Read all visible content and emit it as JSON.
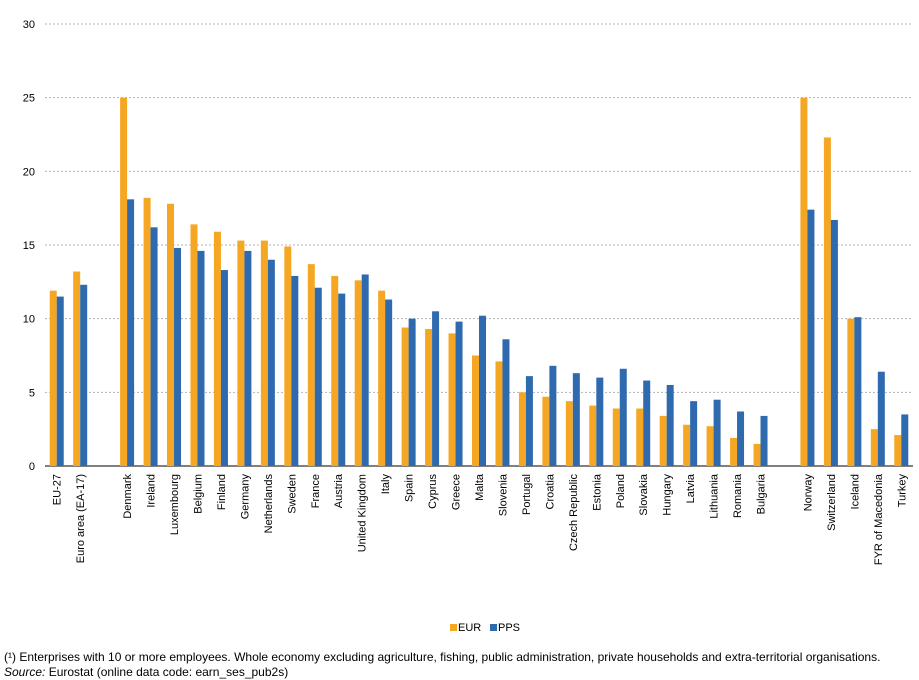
{
  "chart_data": {
    "type": "bar",
    "ylim": [
      0,
      30
    ],
    "yticks": [
      0,
      5,
      10,
      15,
      20,
      25,
      30
    ],
    "grid": true,
    "legend_position": "bottom-center",
    "groups": [
      [
        "EU-27",
        "Euro area (EA-17)"
      ],
      [
        "Denmark",
        "Ireland",
        "Luxembourg",
        "Belgium",
        "Finland",
        "Germany",
        "Netherlands",
        "Sweden",
        "France",
        "Austria",
        "United Kingdom",
        "Italy",
        "Spain",
        "Cyprus",
        "Greece",
        "Malta",
        "Slovenia",
        "Portugal",
        "Croatia",
        "Czech Republic",
        "Estonia",
        "Poland",
        "Slovakia",
        "Hungary",
        "Latvia",
        "Lithuania",
        "Romania",
        "Bulgaria"
      ],
      [
        "Norway",
        "Switzerland",
        "Iceland",
        "FYR of Macedonia",
        "Turkey"
      ]
    ],
    "categories": [
      "EU-27",
      "Euro area (EA-17)",
      "Denmark",
      "Ireland",
      "Luxembourg",
      "Belgium",
      "Finland",
      "Germany",
      "Netherlands",
      "Sweden",
      "France",
      "Austria",
      "United Kingdom",
      "Italy",
      "Spain",
      "Cyprus",
      "Greece",
      "Malta",
      "Slovenia",
      "Portugal",
      "Croatia",
      "Czech Republic",
      "Estonia",
      "Poland",
      "Slovakia",
      "Hungary",
      "Latvia",
      "Lithuania",
      "Romania",
      "Bulgaria",
      "Norway",
      "Switzerland",
      "Iceland",
      "FYR of Macedonia",
      "Turkey"
    ],
    "series": [
      {
        "name": "EUR",
        "color": "#f5a623",
        "values": [
          11.9,
          13.2,
          25.0,
          18.2,
          17.8,
          16.4,
          15.9,
          15.3,
          15.3,
          14.9,
          13.7,
          12.9,
          12.6,
          11.9,
          9.4,
          9.3,
          9.0,
          7.5,
          7.1,
          5.0,
          4.7,
          4.4,
          4.1,
          3.9,
          3.9,
          3.4,
          2.8,
          2.7,
          1.9,
          1.5,
          25.0,
          22.3,
          10.0,
          2.5,
          2.1
        ]
      },
      {
        "name": "PPS",
        "color": "#2e6aad",
        "values": [
          11.5,
          12.3,
          18.1,
          16.2,
          14.8,
          14.6,
          13.3,
          14.6,
          14.0,
          12.9,
          12.1,
          11.7,
          13.0,
          11.3,
          10.0,
          10.5,
          9.8,
          10.2,
          8.6,
          6.1,
          6.8,
          6.3,
          6.0,
          6.6,
          5.8,
          5.5,
          4.4,
          4.5,
          3.7,
          3.4,
          17.4,
          16.7,
          10.1,
          6.4,
          3.5
        ]
      }
    ]
  },
  "footnotes": {
    "note": "(¹) Enterprises with 10 or more employees. Whole economy excluding agriculture, fishing, public administration, private households and extra-territorial organisations.",
    "source_label": "Source:",
    "source_text": " Eurostat (online data code: earn_ses_pub2s)"
  }
}
